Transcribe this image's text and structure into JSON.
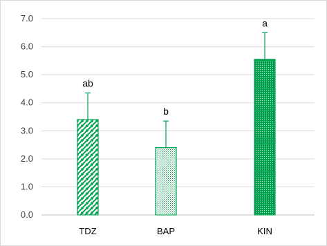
{
  "chart_data": {
    "type": "bar",
    "title": "",
    "xlabel": "",
    "ylabel": "",
    "categories": [
      "TDZ",
      "BAP",
      "KIN"
    ],
    "values": [
      3.4,
      2.4,
      5.55
    ],
    "error_upper": [
      0.95,
      0.95,
      0.95
    ],
    "significance_labels": [
      "ab",
      "b",
      "a"
    ],
    "ylim": [
      0,
      7
    ],
    "yticks": [
      "0.0",
      "1.0",
      "2.0",
      "3.0",
      "4.0",
      "5.0",
      "6.0",
      "7.0"
    ],
    "grid": true,
    "legend": "none",
    "bar_fills": [
      "diagonal-stripes",
      "light-dots",
      "dense-dots"
    ],
    "colors": {
      "bar": "#00a050",
      "grid": "#d9d9d9",
      "axis": "#bfbfbf",
      "error_bar": "#00a050"
    }
  }
}
